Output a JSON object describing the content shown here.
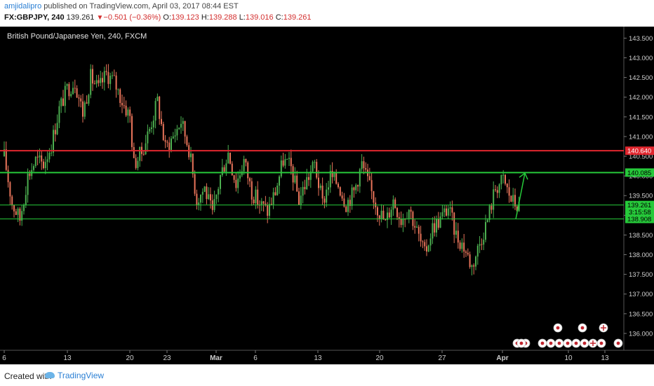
{
  "header": {
    "user": "amjidalipro",
    "published_text": " published on TradingView.com, April 03, 2017 08:44 EST",
    "symbol": "FX:GBPJPY, 240",
    "last": "139.261",
    "change": "−0.501 (−0.36%)",
    "o_label": "O:",
    "o_val": "139.123",
    "h_label": "H:",
    "h_val": "139.288",
    "l_label": "L:",
    "l_val": "139.016",
    "c_label": "C:",
    "c_val": "139.261"
  },
  "footer": {
    "created_with": "Created with",
    "brand": "TradingView"
  },
  "colors": {
    "background": "#000000",
    "up": "#4caf50",
    "down": "#e8745a",
    "resistance": "#e0262e",
    "support": "#26c93a"
  },
  "chart_data": {
    "type": "candlestick",
    "title": "British Pound/Japanese Yen, 240, FXCM",
    "y_range": [
      135.75,
      143.65
    ],
    "y_ticks": [
      "143.500",
      "143.000",
      "142.500",
      "142.000",
      "141.500",
      "141.000",
      "140.500",
      "140.000",
      "139.500",
      "139.000",
      "138.500",
      "138.000",
      "137.500",
      "137.000",
      "136.500",
      "136.000"
    ],
    "x_ticks": [
      {
        "label": "6",
        "bold": false
      },
      {
        "label": "13",
        "bold": false
      },
      {
        "label": "20",
        "bold": false
      },
      {
        "label": "23",
        "bold": false
      },
      {
        "label": "Mar",
        "bold": true
      },
      {
        "label": "6",
        "bold": false
      },
      {
        "label": "13",
        "bold": false
      },
      {
        "label": "20",
        "bold": false
      },
      {
        "label": "27",
        "bold": false
      },
      {
        "label": "Apr",
        "bold": true
      },
      {
        "label": "10",
        "bold": false
      },
      {
        "label": "13",
        "bold": false
      }
    ],
    "horizontal_lines": [
      {
        "value": 140.64,
        "label": "140.640",
        "color": "#e0262e",
        "width": 2
      },
      {
        "value": 140.085,
        "label": "140.085",
        "color": "#26c93a",
        "width": 2
      },
      {
        "value": 139.261,
        "label": "139.261",
        "color": "#26c93a",
        "width": 1
      },
      {
        "value": 138.908,
        "label": "138.908",
        "color": "#26c93a",
        "width": 1
      }
    ],
    "countdown_label": "3:15:58",
    "projection_arrow": {
      "from": 138.9,
      "to": 140.07
    },
    "path": [
      [
        0,
        140.5
      ],
      [
        4,
        139.3
      ],
      [
        8,
        138.9
      ],
      [
        12,
        140.0
      ],
      [
        16,
        140.4
      ],
      [
        20,
        140.3
      ],
      [
        24,
        140.8
      ],
      [
        28,
        141.7
      ],
      [
        32,
        142.2
      ],
      [
        36,
        142.4
      ],
      [
        40,
        141.6
      ],
      [
        44,
        142.5
      ],
      [
        48,
        142.2
      ],
      [
        52,
        142.6
      ],
      [
        56,
        142.4
      ],
      [
        60,
        141.9
      ],
      [
        64,
        141.5
      ],
      [
        66,
        140.3
      ],
      [
        70,
        140.6
      ],
      [
        74,
        141.2
      ],
      [
        78,
        141.9
      ],
      [
        82,
        140.7
      ],
      [
        86,
        141.0
      ],
      [
        90,
        141.4
      ],
      [
        94,
        140.7
      ],
      [
        98,
        139.4
      ],
      [
        102,
        139.7
      ],
      [
        106,
        139.0
      ],
      [
        110,
        140.0
      ],
      [
        114,
        140.6
      ],
      [
        118,
        139.8
      ],
      [
        122,
        140.4
      ],
      [
        126,
        139.6
      ],
      [
        130,
        139.3
      ],
      [
        134,
        139.1
      ],
      [
        138,
        139.6
      ],
      [
        142,
        140.4
      ],
      [
        146,
        140.2
      ],
      [
        150,
        139.4
      ],
      [
        154,
        139.9
      ],
      [
        158,
        140.3
      ],
      [
        162,
        139.3
      ],
      [
        166,
        140.0
      ],
      [
        170,
        139.8
      ],
      [
        174,
        139.3
      ],
      [
        178,
        139.6
      ],
      [
        182,
        140.3
      ],
      [
        186,
        139.7
      ],
      [
        190,
        139.2
      ],
      [
        194,
        138.8
      ],
      [
        198,
        139.4
      ],
      [
        202,
        138.9
      ],
      [
        206,
        139.2
      ],
      [
        210,
        138.6
      ],
      [
        214,
        138.0
      ],
      [
        218,
        138.7
      ],
      [
        222,
        138.9
      ],
      [
        226,
        139.2
      ],
      [
        230,
        138.5
      ],
      [
        234,
        138.2
      ],
      [
        238,
        137.7
      ],
      [
        242,
        138.3
      ],
      [
        246,
        138.9
      ],
      [
        250,
        139.7
      ],
      [
        254,
        139.9
      ],
      [
        258,
        139.4
      ],
      [
        262,
        139.2
      ]
    ]
  },
  "event_icons": [
    "flag",
    "flag",
    "dot",
    "flag",
    "flag",
    "flag",
    "dot",
    "flag",
    "flag",
    "uk",
    "flag",
    "dot",
    "flag",
    "flag",
    "uk"
  ]
}
